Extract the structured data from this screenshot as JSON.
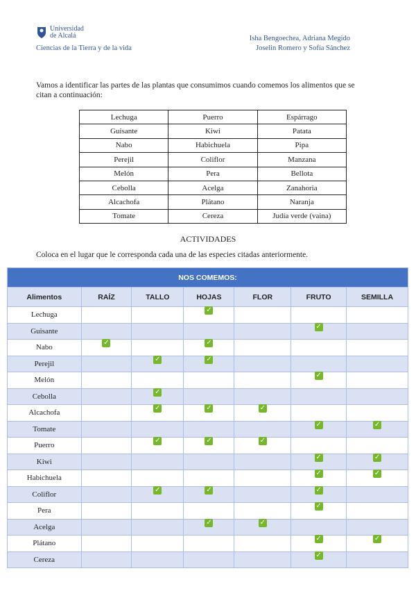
{
  "header": {
    "university_line1": "Universidad",
    "university_line2": "de Alcalá",
    "subject": "Ciencias de la Tierra y de la vida",
    "authors_line1": "Isha Bengoechea, Adriana Megido",
    "authors_line2": "Joselin Romero y Sofía Sánchez"
  },
  "intro": "Vamos a identificar las partes de las plantas que consumimos cuando comemos los alimentos que se citan a continuación:",
  "foods_table": [
    [
      "Lechuga",
      "Puerro",
      "Espárrago"
    ],
    [
      "Guisante",
      "Kiwi",
      "Patata"
    ],
    [
      "Nabo",
      "Habichuela",
      "Pipa"
    ],
    [
      "Perejil",
      "Coliflor",
      "Manzana"
    ],
    [
      "Melón",
      "Pera",
      "Bellota"
    ],
    [
      "Cebolla",
      "Acelga",
      "Zanahoria"
    ],
    [
      "Alcachofa",
      "Plátano",
      "Naranja"
    ],
    [
      "Tomate",
      "Cereza",
      "Judía verde (vaina)"
    ]
  ],
  "activities_title": "ACTIVIDADES",
  "instruction": "Coloca en el lugar que le corresponda cada una de las especies citadas anteriormente.",
  "answer_table": {
    "title": "NOS COMEMOS:",
    "headers": [
      "Alimentos",
      "RAÍZ",
      "TALLO",
      "HOJAS",
      "FLOR",
      "FRUTO",
      "SEMILLA"
    ],
    "check_glyph": "✓",
    "check_color": "#77b82a",
    "header_color": "#4472c4",
    "rows": [
      {
        "food": "Lechuga",
        "checks": [
          0,
          0,
          1,
          0,
          0,
          0
        ]
      },
      {
        "food": "Guisante",
        "checks": [
          0,
          0,
          0,
          0,
          1,
          0
        ]
      },
      {
        "food": "Nabo",
        "checks": [
          1,
          0,
          1,
          0,
          0,
          0
        ]
      },
      {
        "food": "Perejil",
        "checks": [
          0,
          1,
          1,
          0,
          0,
          0
        ]
      },
      {
        "food": "Melón",
        "checks": [
          0,
          0,
          0,
          0,
          1,
          0
        ]
      },
      {
        "food": "Cebolla",
        "checks": [
          0,
          1,
          0,
          0,
          0,
          0
        ]
      },
      {
        "food": "Alcachofa",
        "checks": [
          0,
          1,
          1,
          1,
          0,
          0
        ]
      },
      {
        "food": "Tomate",
        "checks": [
          0,
          0,
          0,
          0,
          1,
          1
        ]
      },
      {
        "food": "Puerro",
        "checks": [
          0,
          1,
          1,
          1,
          0,
          0
        ]
      },
      {
        "food": "Kiwi",
        "checks": [
          0,
          0,
          0,
          0,
          1,
          1
        ]
      },
      {
        "food": "Habichuela",
        "checks": [
          0,
          0,
          0,
          0,
          1,
          1
        ]
      },
      {
        "food": "Coliflor",
        "checks": [
          0,
          1,
          1,
          0,
          1,
          0
        ]
      },
      {
        "food": "Pera",
        "checks": [
          0,
          0,
          0,
          0,
          1,
          0
        ]
      },
      {
        "food": "Acelga",
        "checks": [
          0,
          0,
          1,
          1,
          0,
          0
        ]
      },
      {
        "food": "Plátano",
        "checks": [
          0,
          0,
          0,
          0,
          1,
          1
        ]
      },
      {
        "food": "Cereza",
        "checks": [
          0,
          0,
          0,
          0,
          1,
          0
        ]
      }
    ]
  }
}
